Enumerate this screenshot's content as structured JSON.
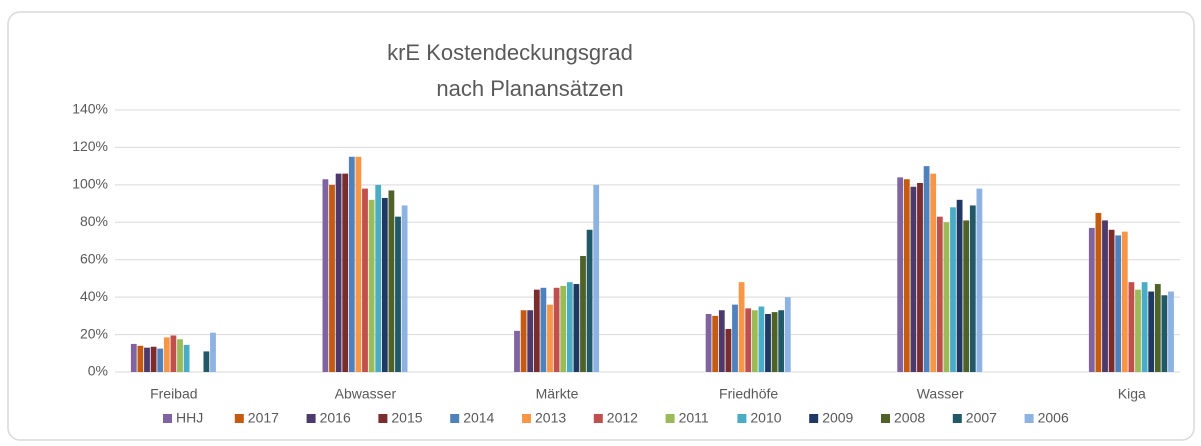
{
  "chart_data": {
    "type": "bar",
    "title": [
      "krE Kostendeckungsgrad",
      "nach Planansätzen"
    ],
    "categories": [
      "Freibad",
      "Abwasser",
      "Märkte",
      "Friedhöfe",
      "Wasser",
      "Kiga"
    ],
    "ylim": [
      0,
      140
    ],
    "yticks": [
      {
        "value": 0,
        "label": "0%"
      },
      {
        "value": 20,
        "label": "20%"
      },
      {
        "value": 40,
        "label": "40%"
      },
      {
        "value": 60,
        "label": "60%"
      },
      {
        "value": 80,
        "label": "80%"
      },
      {
        "value": 100,
        "label": "100%"
      },
      {
        "value": 120,
        "label": "120%"
      },
      {
        "value": 140,
        "label": "140%"
      }
    ],
    "grid": true,
    "legend": "bottom",
    "series": [
      {
        "name": "HHJ",
        "color": "#8064a2",
        "values": [
          15,
          103,
          22,
          31,
          104,
          77
        ]
      },
      {
        "name": "2017",
        "color": "#c55a11",
        "values": [
          14,
          100,
          33,
          30,
          103,
          85
        ]
      },
      {
        "name": "2016",
        "color": "#4b3a6b",
        "values": [
          13,
          106,
          33,
          33,
          99,
          81
        ]
      },
      {
        "name": "2015",
        "color": "#7b2c2c",
        "values": [
          13.5,
          106,
          44,
          23,
          101,
          76
        ]
      },
      {
        "name": "2014",
        "color": "#4f81bd",
        "values": [
          12.5,
          115,
          45,
          36,
          110,
          73
        ]
      },
      {
        "name": "2013",
        "color": "#f79646",
        "values": [
          18.5,
          115,
          36,
          48,
          106,
          75
        ]
      },
      {
        "name": "2012",
        "color": "#c0504d",
        "values": [
          19.5,
          98,
          45,
          34,
          83,
          48
        ]
      },
      {
        "name": "2011",
        "color": "#9bbb59",
        "values": [
          17.5,
          92,
          46,
          33,
          80,
          44
        ]
      },
      {
        "name": "2010",
        "color": "#4bacc6",
        "values": [
          14.5,
          100,
          48,
          35,
          88,
          48
        ]
      },
      {
        "name": "2009",
        "color": "#1f3864",
        "values": [
          null,
          93,
          47,
          31,
          92,
          43
        ]
      },
      {
        "name": "2008",
        "color": "#4f6228",
        "values": [
          null,
          97,
          62,
          32,
          81,
          47
        ]
      },
      {
        "name": "2007",
        "color": "#215968",
        "values": [
          11,
          83,
          76,
          33,
          89,
          41
        ]
      },
      {
        "name": "2006",
        "color": "#8db3e2",
        "values": [
          21,
          89,
          100,
          40,
          98,
          43
        ]
      }
    ]
  }
}
